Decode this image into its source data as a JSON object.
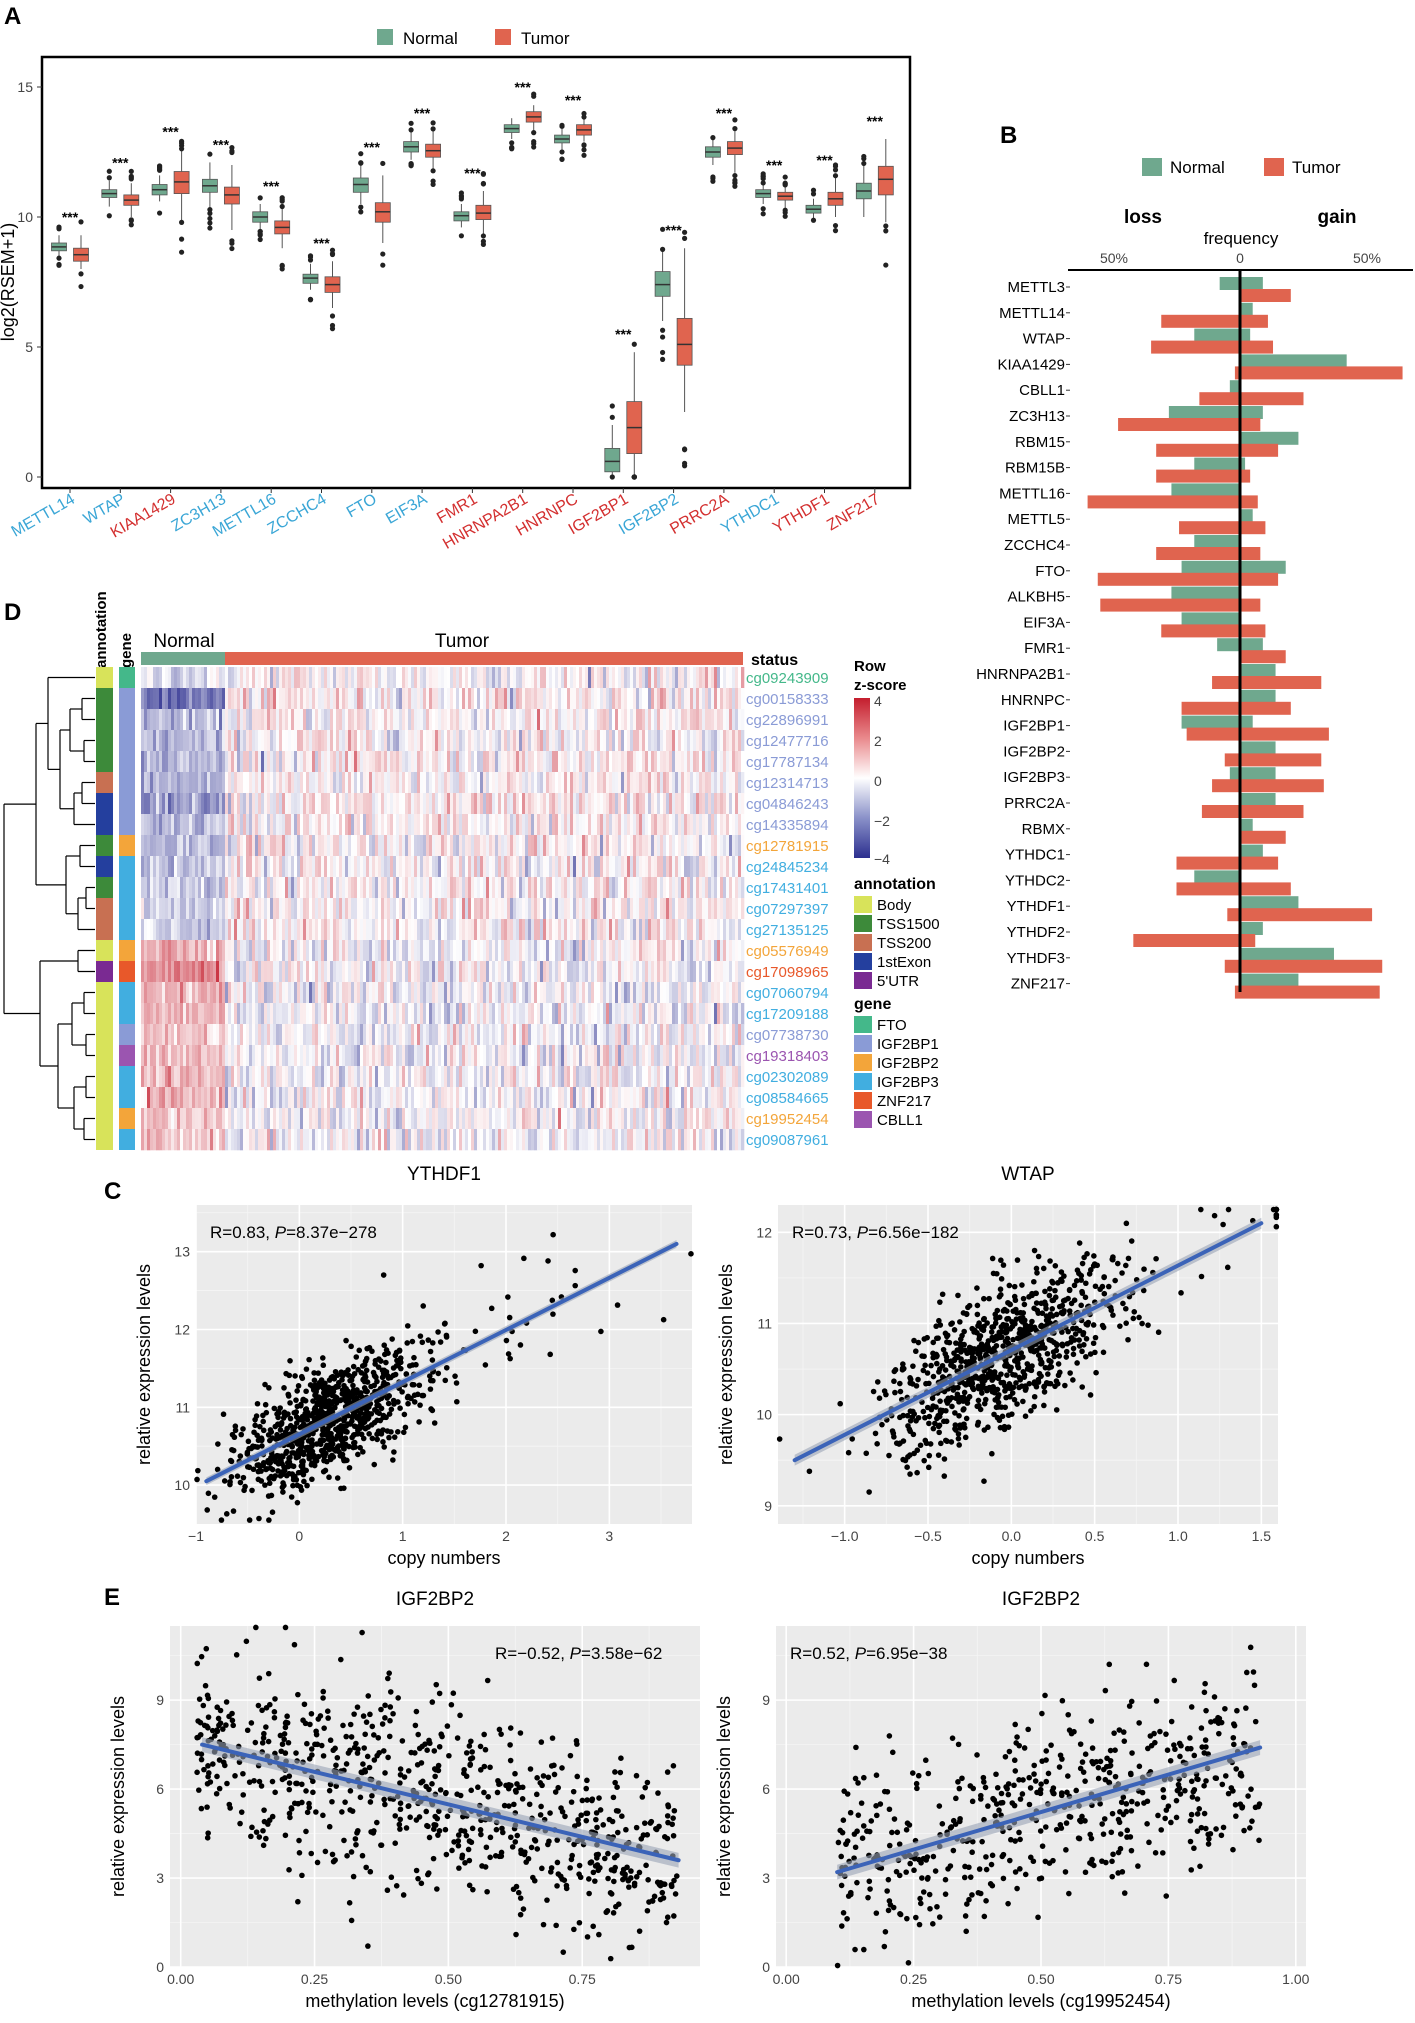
{
  "colors": {
    "normal": "#6fa88e",
    "tumor": "#e0644f",
    "blue_gene": "#3aa6d6",
    "red_gene": "#d32f2f",
    "line": "#3b63b8",
    "panel_bg": "#ebebeb"
  },
  "panels": {
    "A": "A",
    "B": "B",
    "C": "C",
    "D": "D",
    "E": "E"
  },
  "chart_data": [
    {
      "id": "A",
      "type": "box",
      "legend": [
        "Normal",
        "Tumor"
      ],
      "ylabel": "log2(RSEM+1)",
      "ylim": [
        0,
        16
      ],
      "yticks": [
        0,
        5,
        10,
        15
      ],
      "significance": "***",
      "genes": [
        {
          "name": "METTL14",
          "color": "blue",
          "normal": [
            8.5,
            8.7,
            8.85,
            9.0,
            9.3
          ],
          "tumor": [
            8.0,
            8.3,
            8.55,
            8.8,
            9.3
          ]
        },
        {
          "name": "WTAP",
          "color": "blue",
          "normal": [
            10.4,
            10.75,
            10.9,
            11.05,
            11.4
          ],
          "tumor": [
            10.0,
            10.45,
            10.65,
            10.85,
            11.3
          ]
        },
        {
          "name": "KIAA1429",
          "color": "red",
          "normal": [
            10.6,
            10.85,
            11.05,
            11.25,
            11.6
          ],
          "tumor": [
            9.8,
            10.9,
            11.35,
            11.75,
            12.6
          ]
        },
        {
          "name": "ZC3H13",
          "color": "blue",
          "normal": [
            10.3,
            10.95,
            11.2,
            11.45,
            12.1
          ],
          "tumor": [
            9.5,
            10.5,
            10.85,
            11.15,
            12.0
          ]
        },
        {
          "name": "METTL16",
          "color": "blue",
          "normal": [
            9.5,
            9.8,
            10.0,
            10.2,
            10.5
          ],
          "tumor": [
            8.8,
            9.35,
            9.6,
            9.85,
            10.4
          ]
        },
        {
          "name": "ZCCHC4",
          "color": "blue",
          "normal": [
            7.2,
            7.45,
            7.65,
            7.8,
            8.2
          ],
          "tumor": [
            6.5,
            7.1,
            7.4,
            7.7,
            8.3
          ]
        },
        {
          "name": "FTO",
          "color": "blue",
          "normal": [
            10.5,
            10.95,
            11.25,
            11.5,
            12.0
          ],
          "tumor": [
            9.0,
            9.8,
            10.2,
            10.55,
            11.6
          ]
        },
        {
          "name": "EIF3A",
          "color": "blue",
          "normal": [
            12.2,
            12.5,
            12.7,
            12.9,
            13.3
          ],
          "tumor": [
            11.8,
            12.3,
            12.55,
            12.8,
            13.3
          ]
        },
        {
          "name": "FMR1",
          "color": "red",
          "normal": [
            9.6,
            9.85,
            10.05,
            10.2,
            10.5
          ],
          "tumor": [
            9.3,
            9.9,
            10.15,
            10.45,
            11.0
          ]
        },
        {
          "name": "HNRNPA2B1",
          "color": "red",
          "normal": [
            13.0,
            13.25,
            13.4,
            13.55,
            13.8
          ],
          "tumor": [
            13.3,
            13.65,
            13.85,
            14.05,
            14.3
          ]
        },
        {
          "name": "HNRNPC",
          "color": "red",
          "normal": [
            12.6,
            12.85,
            13.0,
            13.15,
            13.4
          ],
          "tumor": [
            12.9,
            13.15,
            13.35,
            13.55,
            13.8
          ]
        },
        {
          "name": "IGF2BP1",
          "color": "red",
          "normal": [
            0.0,
            0.2,
            0.6,
            1.1,
            2.0
          ],
          "tumor": [
            0.0,
            0.9,
            1.9,
            2.9,
            4.8
          ]
        },
        {
          "name": "IGF2BP2",
          "color": "blue",
          "normal": [
            6.0,
            6.95,
            7.4,
            7.9,
            8.7
          ],
          "tumor": [
            2.5,
            4.3,
            5.1,
            6.1,
            8.8
          ]
        },
        {
          "name": "PRRC2A",
          "color": "red",
          "normal": [
            12.0,
            12.3,
            12.5,
            12.7,
            13.0
          ],
          "tumor": [
            11.7,
            12.4,
            12.65,
            12.9,
            13.3
          ]
        },
        {
          "name": "YTHDC1",
          "color": "blue",
          "normal": [
            10.5,
            10.75,
            10.9,
            11.05,
            11.3
          ],
          "tumor": [
            10.3,
            10.65,
            10.8,
            10.95,
            11.2
          ]
        },
        {
          "name": "YTHDF1",
          "color": "red",
          "normal": [
            9.9,
            10.15,
            10.3,
            10.45,
            10.7
          ],
          "tumor": [
            10.0,
            10.45,
            10.7,
            10.95,
            11.5
          ]
        },
        {
          "name": "ZNF217",
          "color": "red",
          "normal": [
            10.0,
            10.7,
            11.0,
            11.3,
            12.0
          ],
          "tumor": [
            9.8,
            10.85,
            11.45,
            11.95,
            13.0
          ]
        }
      ]
    },
    {
      "id": "B",
      "type": "bar",
      "legend": [
        "Normal",
        "Tumor"
      ],
      "title_left": "loss",
      "title_right": "gain",
      "axis_title": "frequency",
      "ticks": [
        "50%",
        "0",
        "50%"
      ],
      "genes": [
        {
          "name": "METTL3",
          "normal": [
            0.08,
            0.09
          ],
          "tumor": [
            0.0,
            0.2
          ]
        },
        {
          "name": "METTL14",
          "normal": [
            0.0,
            0.05
          ],
          "tumor": [
            0.31,
            0.11
          ]
        },
        {
          "name": "WTAP",
          "normal": [
            0.18,
            0.04
          ],
          "tumor": [
            0.35,
            0.13
          ]
        },
        {
          "name": "KIAA1429",
          "normal": [
            0.0,
            0.42
          ],
          "tumor": [
            0.02,
            0.64
          ]
        },
        {
          "name": "CBLL1",
          "normal": [
            0.04,
            0.0
          ],
          "tumor": [
            0.16,
            0.25
          ]
        },
        {
          "name": "ZC3H13",
          "normal": [
            0.28,
            0.09
          ],
          "tumor": [
            0.48,
            0.08
          ]
        },
        {
          "name": "RBM15",
          "normal": [
            0.0,
            0.23
          ],
          "tumor": [
            0.33,
            0.15
          ]
        },
        {
          "name": "RBM15B",
          "normal": [
            0.18,
            0.02
          ],
          "tumor": [
            0.33,
            0.04
          ]
        },
        {
          "name": "METTL16",
          "normal": [
            0.27,
            0.0
          ],
          "tumor": [
            0.6,
            0.07
          ]
        },
        {
          "name": "METTL5",
          "normal": [
            0.0,
            0.05
          ],
          "tumor": [
            0.24,
            0.1
          ]
        },
        {
          "name": "ZCCHC4",
          "normal": [
            0.18,
            0.0
          ],
          "tumor": [
            0.33,
            0.08
          ]
        },
        {
          "name": "FTO",
          "normal": [
            0.23,
            0.18
          ],
          "tumor": [
            0.56,
            0.15
          ]
        },
        {
          "name": "ALKBH5",
          "normal": [
            0.27,
            0.0
          ],
          "tumor": [
            0.55,
            0.08
          ]
        },
        {
          "name": "EIF3A",
          "normal": [
            0.23,
            0.0
          ],
          "tumor": [
            0.31,
            0.1
          ]
        },
        {
          "name": "FMR1",
          "normal": [
            0.09,
            0.09
          ],
          "tumor": [
            0.0,
            0.18
          ]
        },
        {
          "name": "HNRNPA2B1",
          "normal": [
            0.0,
            0.14
          ],
          "tumor": [
            0.11,
            0.32
          ]
        },
        {
          "name": "HNRNPC",
          "normal": [
            0.0,
            0.14
          ],
          "tumor": [
            0.23,
            0.2
          ]
        },
        {
          "name": "IGF2BP1",
          "normal": [
            0.23,
            0.05
          ],
          "tumor": [
            0.21,
            0.35
          ]
        },
        {
          "name": "IGF2BP2",
          "normal": [
            0.0,
            0.14
          ],
          "tumor": [
            0.06,
            0.32
          ]
        },
        {
          "name": "IGF2BP3",
          "normal": [
            0.04,
            0.14
          ],
          "tumor": [
            0.11,
            0.33
          ]
        },
        {
          "name": "PRRC2A",
          "normal": [
            0.0,
            0.14
          ],
          "tumor": [
            0.15,
            0.25
          ]
        },
        {
          "name": "RBMX",
          "normal": [
            0.0,
            0.05
          ],
          "tumor": [
            0.0,
            0.18
          ]
        },
        {
          "name": "YTHDC1",
          "normal": [
            0.0,
            0.09
          ],
          "tumor": [
            0.25,
            0.15
          ]
        },
        {
          "name": "YTHDC2",
          "normal": [
            0.18,
            0.0
          ],
          "tumor": [
            0.25,
            0.2
          ]
        },
        {
          "name": "YTHDF1",
          "normal": [
            0.0,
            0.23
          ],
          "tumor": [
            0.05,
            0.52
          ]
        },
        {
          "name": "YTHDF2",
          "normal": [
            0.0,
            0.09
          ],
          "tumor": [
            0.42,
            0.06
          ]
        },
        {
          "name": "YTHDF3",
          "normal": [
            0.0,
            0.37
          ],
          "tumor": [
            0.06,
            0.56
          ]
        },
        {
          "name": "ZNF217",
          "normal": [
            0.0,
            0.23
          ],
          "tumor": [
            0.02,
            0.55
          ]
        }
      ]
    },
    {
      "id": "C1",
      "type": "scatter",
      "title": "YTHDF1",
      "annotation": "R=0.83, ",
      "p_label": "P",
      "p_value": "=8.37e−278",
      "xlabel": "copy numbers",
      "ylabel": "relative expression levels",
      "xlim": [
        -1,
        3.8
      ],
      "ylim": [
        9.5,
        13.6
      ],
      "xticks": [
        -1,
        0,
        1,
        2,
        3
      ],
      "xtick_labels": [
        "−1",
        "0",
        "1",
        "2",
        "3"
      ],
      "yticks": [
        10,
        11,
        12,
        13
      ],
      "ytick_labels": [
        "10",
        "11",
        "12",
        "13"
      ],
      "fit": {
        "x0": -0.9,
        "y0": 10.05,
        "x1": 3.65,
        "y1": 13.1,
        "band": 0.05
      },
      "n_points": 900,
      "x_center": 0.25,
      "x_spread": 0.45,
      "noise": 0.35
    },
    {
      "id": "C2",
      "type": "scatter",
      "title": "WTAP",
      "annotation": "R=0.73, ",
      "p_label": "P",
      "p_value": "=6.56e−182",
      "xlabel": "copy numbers",
      "ylabel": "relative expression levels",
      "xlim": [
        -1.4,
        1.6
      ],
      "ylim": [
        8.8,
        12.3
      ],
      "xticks": [
        -1,
        -0.5,
        0,
        0.5,
        1,
        1.5
      ],
      "xtick_labels": [
        "−1.0",
        "−0.5",
        "0.0",
        "0.5",
        "1.0",
        "1.5"
      ],
      "yticks": [
        9,
        10,
        11,
        12
      ],
      "ytick_labels": [
        "9",
        "10",
        "11",
        "12"
      ],
      "fit": {
        "x0": -1.3,
        "y0": 9.5,
        "x1": 1.5,
        "y1": 12.1,
        "band": 0.06
      },
      "n_points": 900,
      "x_center": -0.05,
      "x_spread": 0.35,
      "noise": 0.38
    },
    {
      "id": "E1",
      "type": "scatter",
      "title": "IGF2BP2",
      "annotation": "R=−0.52, ",
      "p_label": "P",
      "p_value": "=3.58e−62",
      "xlabel": "methylation levels (cg12781915)",
      "ylabel": "relative expression levels",
      "xlim": [
        -0.02,
        0.97
      ],
      "ylim": [
        0,
        11.5
      ],
      "xticks": [
        0,
        0.25,
        0.5,
        0.75
      ],
      "xtick_labels": [
        "0.00",
        "0.25",
        "0.50",
        "0.75"
      ],
      "yticks": [
        0,
        3,
        6,
        9
      ],
      "ytick_labels": [
        "0",
        "3",
        "6",
        "9"
      ],
      "fit": {
        "x0": 0.04,
        "y0": 7.5,
        "x1": 0.93,
        "y1": 3.6,
        "band": 0.25
      },
      "n_points": 750,
      "x_min": 0.03,
      "x_max": 0.93,
      "noise": 1.6
    },
    {
      "id": "E2",
      "type": "scatter",
      "title": "IGF2BP2",
      "annotation": "R=0.52, ",
      "p_label": "P",
      "p_value": "=6.95e−38",
      "xlabel": "methylation levels (cg19952454)",
      "ylabel": "relative expression levels",
      "xlim": [
        -0.02,
        1.02
      ],
      "ylim": [
        0,
        11.5
      ],
      "xticks": [
        0,
        0.25,
        0.5,
        0.75,
        1
      ],
      "xtick_labels": [
        "0.00",
        "0.25",
        "0.50",
        "0.75",
        "1.00"
      ],
      "yticks": [
        0,
        3,
        6,
        9
      ],
      "ytick_labels": [
        "0",
        "3",
        "6",
        "9"
      ],
      "fit": {
        "x0": 0.1,
        "y0": 3.2,
        "x1": 0.93,
        "y1": 7.4,
        "band": 0.25
      },
      "n_points": 550,
      "x_min": 0.1,
      "x_max": 0.93,
      "noise": 1.5
    },
    {
      "id": "D",
      "type": "heatmap",
      "groups": [
        "Normal",
        "Tumor"
      ],
      "side_labels": [
        "annotation",
        "gene"
      ],
      "status_label": "status",
      "legend_title_1": "Row",
      "legend_title_2": "z-score",
      "scale_ticks": [
        "4",
        "2",
        "0",
        "−2",
        "−4"
      ],
      "annotation_title": "annotation",
      "annotations": [
        {
          "name": "Body",
          "color": "#d8e35a"
        },
        {
          "name": "TSS1500",
          "color": "#3d8a3a"
        },
        {
          "name": "TSS200",
          "color": "#c87052"
        },
        {
          "name": "1stExon",
          "color": "#243f9e"
        },
        {
          "name": "5'UTR",
          "color": "#7a2a92"
        }
      ],
      "gene_title": "gene",
      "genes": [
        {
          "name": "FTO",
          "color": "#44b88a"
        },
        {
          "name": "IGF2BP1",
          "color": "#8a9bd6"
        },
        {
          "name": "IGF2BP2",
          "color": "#f3a53a"
        },
        {
          "name": "IGF2BP3",
          "color": "#41aee0"
        },
        {
          "name": "ZNF217",
          "color": "#e8582a"
        },
        {
          "name": "CBLL1",
          "color": "#9b55b0"
        }
      ],
      "rows": [
        {
          "probe": "cg09243909",
          "gene": "FTO",
          "annot": "Body",
          "normal_z": -0.6
        },
        {
          "probe": "cg00158333",
          "gene": "IGF2BP1",
          "annot": "TSS1500",
          "normal_z": -2.6
        },
        {
          "probe": "cg22896991",
          "gene": "IGF2BP1",
          "annot": "TSS1500",
          "normal_z": -1.4
        },
        {
          "probe": "cg12477716",
          "gene": "IGF2BP1",
          "annot": "TSS1500",
          "normal_z": -1.5
        },
        {
          "probe": "cg17787134",
          "gene": "IGF2BP1",
          "annot": "TSS1500",
          "normal_z": -1.4
        },
        {
          "probe": "cg12314713",
          "gene": "IGF2BP1",
          "annot": "TSS200",
          "normal_z": -1.5
        },
        {
          "probe": "cg04846243",
          "gene": "IGF2BP1",
          "annot": "1stExon",
          "normal_z": -1.7
        },
        {
          "probe": "cg14335894",
          "gene": "IGF2BP1",
          "annot": "1stExon",
          "normal_z": -1.3
        },
        {
          "probe": "cg12781915",
          "gene": "IGF2BP2",
          "annot": "TSS1500",
          "normal_z": -1.2
        },
        {
          "probe": "cg24845234",
          "gene": "IGF2BP3",
          "annot": "1stExon",
          "normal_z": -1.3
        },
        {
          "probe": "cg17431401",
          "gene": "IGF2BP3",
          "annot": "TSS1500",
          "normal_z": -1.1
        },
        {
          "probe": "cg07297397",
          "gene": "IGF2BP3",
          "annot": "TSS200",
          "normal_z": -1.0
        },
        {
          "probe": "cg27135125",
          "gene": "IGF2BP3",
          "annot": "TSS200",
          "normal_z": -1.0
        },
        {
          "probe": "cg05576949",
          "gene": "IGF2BP2",
          "annot": "Body",
          "normal_z": 1.6
        },
        {
          "probe": "cg17098965",
          "gene": "ZNF217",
          "annot": "5'UTR",
          "normal_z": 2.0
        },
        {
          "probe": "cg07060794",
          "gene": "IGF2BP3",
          "annot": "Body",
          "normal_z": 1.5
        },
        {
          "probe": "cg17209188",
          "gene": "IGF2BP3",
          "annot": "Body",
          "normal_z": 1.3
        },
        {
          "probe": "cg07738730",
          "gene": "IGF2BP1",
          "annot": "Body",
          "normal_z": 1.0
        },
        {
          "probe": "cg19318403",
          "gene": "CBLL1",
          "annot": "Body",
          "normal_z": 1.1
        },
        {
          "probe": "cg02302089",
          "gene": "IGF2BP3",
          "annot": "Body",
          "normal_z": 1.2
        },
        {
          "probe": "cg08584665",
          "gene": "IGF2BP3",
          "annot": "Body",
          "normal_z": 1.2
        },
        {
          "probe": "cg19952454",
          "gene": "IGF2BP2",
          "annot": "Body",
          "normal_z": 1.0
        },
        {
          "probe": "cg09087961",
          "gene": "IGF2BP3",
          "annot": "Body",
          "normal_z": 1.0
        }
      ]
    }
  ]
}
